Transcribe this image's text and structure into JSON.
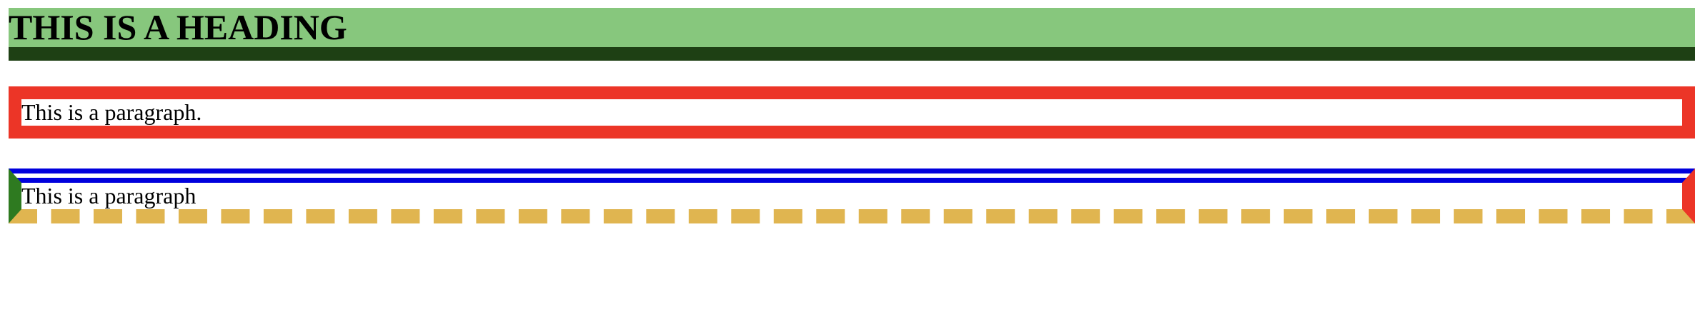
{
  "heading": {
    "text": "THIS IS A HEADING"
  },
  "paragraphs": [
    {
      "text": "This is a paragraph."
    },
    {
      "text": "This is a paragraph"
    }
  ],
  "colors": {
    "heading_background": "#87c77d",
    "heading_border_bottom": "#1e4014",
    "paragraph1_border": "#ec3527",
    "paragraph2_border_top": "#0000dd",
    "paragraph2_border_left": "#2e7a20",
    "paragraph2_border_right": "#ec3527",
    "paragraph2_border_bottom": "#e0b550"
  }
}
